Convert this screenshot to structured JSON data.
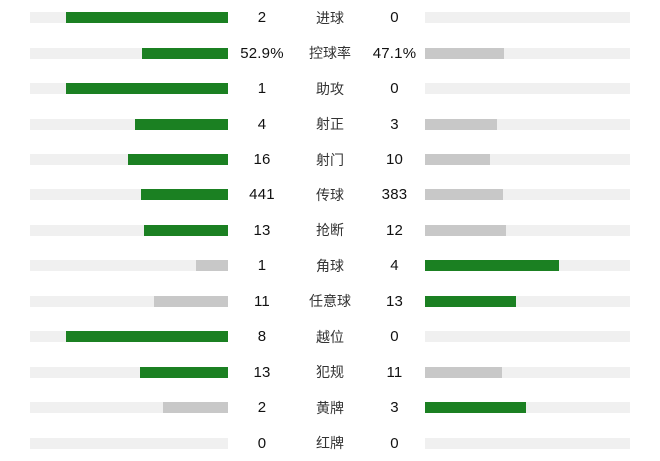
{
  "chart_data": {
    "type": "bar",
    "title": "",
    "orientation": "mirrored-horizontal",
    "bar_max_fraction": 0.82,
    "colors": {
      "leader": "#1b8022",
      "trailer": "#c8c8c8",
      "track": "#f0f0f0",
      "value_text": "#111111",
      "label_text": "#333333",
      "background": "#ffffff"
    },
    "rows": [
      {
        "label": "进球",
        "home": 2,
        "away": 0,
        "home_display": "2",
        "away_display": "0"
      },
      {
        "label": "控球率",
        "home": 52.9,
        "away": 47.1,
        "home_display": "52.9%",
        "away_display": "47.1%"
      },
      {
        "label": "助攻",
        "home": 1,
        "away": 0,
        "home_display": "1",
        "away_display": "0"
      },
      {
        "label": "射正",
        "home": 4,
        "away": 3,
        "home_display": "4",
        "away_display": "3"
      },
      {
        "label": "射门",
        "home": 16,
        "away": 10,
        "home_display": "16",
        "away_display": "10"
      },
      {
        "label": "传球",
        "home": 441,
        "away": 383,
        "home_display": "441",
        "away_display": "383"
      },
      {
        "label": "抢断",
        "home": 13,
        "away": 12,
        "home_display": "13",
        "away_display": "12"
      },
      {
        "label": "角球",
        "home": 1,
        "away": 4,
        "home_display": "1",
        "away_display": "4"
      },
      {
        "label": "任意球",
        "home": 11,
        "away": 13,
        "home_display": "11",
        "away_display": "13"
      },
      {
        "label": "越位",
        "home": 8,
        "away": 0,
        "home_display": "8",
        "away_display": "0"
      },
      {
        "label": "犯规",
        "home": 13,
        "away": 11,
        "home_display": "13",
        "away_display": "11"
      },
      {
        "label": "黄牌",
        "home": 2,
        "away": 3,
        "home_display": "2",
        "away_display": "3"
      },
      {
        "label": "红牌",
        "home": 0,
        "away": 0,
        "home_display": "0",
        "away_display": "0"
      }
    ]
  }
}
